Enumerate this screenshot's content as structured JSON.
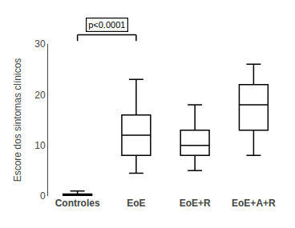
{
  "chart_data": {
    "type": "box",
    "categories": [
      "Controles",
      "EoE",
      "EoE+R",
      "EoE+A+R"
    ],
    "median": [
      0.1,
      12.0,
      10.0,
      18.0
    ],
    "q1": [
      0.0,
      8.0,
      8.0,
      13.0
    ],
    "q3": [
      0.4,
      16.0,
      13.0,
      22.0
    ],
    "whislo": [
      0.0,
      4.5,
      5.0,
      8.0
    ],
    "whishi": [
      1.0,
      23.0,
      18.0,
      26.0
    ],
    "ylabel": "Escore dos sintomas clínicos",
    "ylim": [
      0,
      30
    ],
    "yticks": [
      0,
      10,
      20,
      30
    ],
    "color": "#000000",
    "grid": false,
    "annotations": [
      {
        "text": "p<0.0001",
        "x": [
          0,
          1
        ]
      }
    ]
  }
}
